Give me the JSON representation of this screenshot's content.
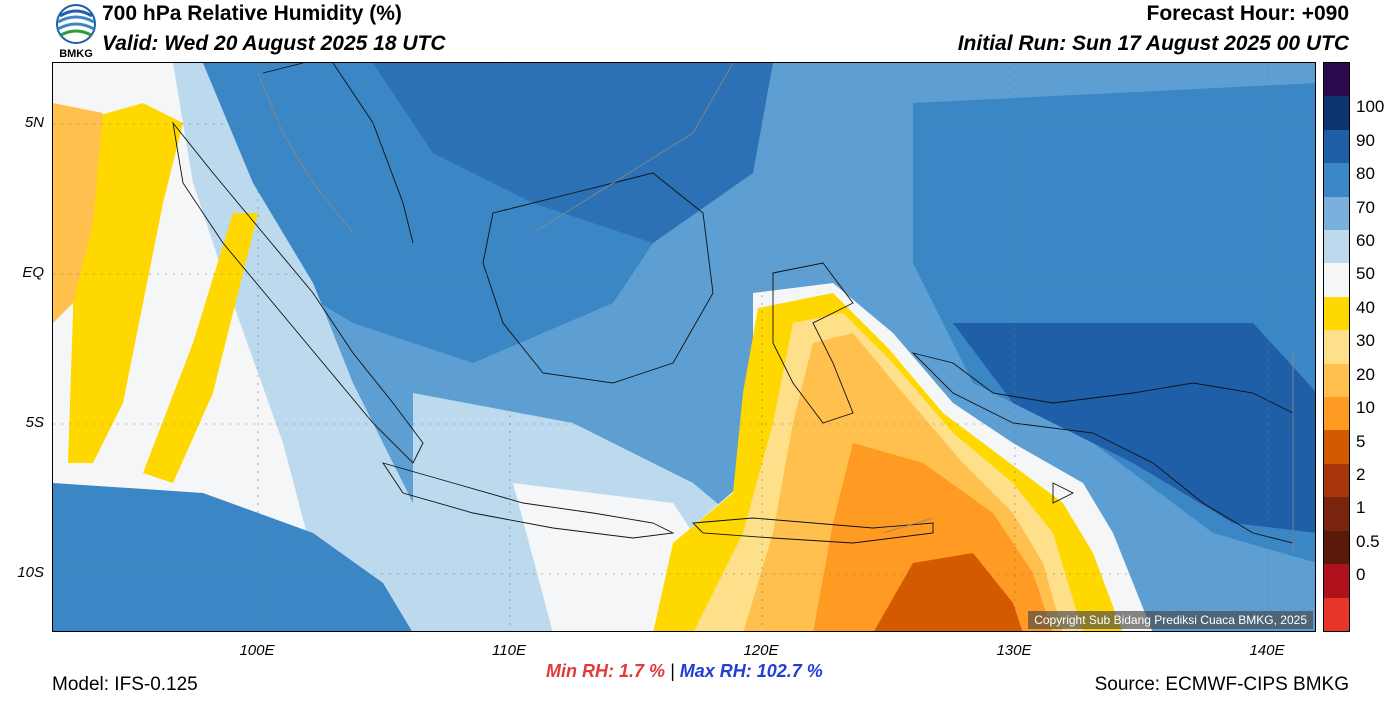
{
  "header": {
    "title": "700 hPa Relative Humidity (%)",
    "valid": "Valid: Wed 20 August 2025 18 UTC",
    "forecast_hour": "Forecast Hour: +090",
    "initial_run": "Initial Run: Sun 17 August 2025 00 UTC"
  },
  "logo": {
    "text": "BMKG"
  },
  "map": {
    "lat_labels": [
      "5N",
      "EQ",
      "5S",
      "10S"
    ],
    "lon_labels": [
      "100E",
      "110E",
      "120E",
      "130E",
      "140E"
    ],
    "copyright": "Copyright Sub Bidang Prediksi Cuaca BMKG, 2025"
  },
  "colorbar": {
    "labels": [
      "100",
      "90",
      "80",
      "70",
      "60",
      "50",
      "40",
      "30",
      "20",
      "10",
      "5",
      "2",
      "1",
      "0.5",
      "0"
    ],
    "colors": [
      "#2b0a4f",
      "#0d3470",
      "#1f5fa8",
      "#3b86c4",
      "#7ab1dc",
      "#bcd9ee",
      "#f4f6f7",
      "#ffd800",
      "#ffe08a",
      "#ffc04e",
      "#ff9a22",
      "#d45a00",
      "#a8360a",
      "#7a2410",
      "#5a1a0a",
      "#b0121c",
      "#e8352a"
    ]
  },
  "stats": {
    "min_label": "Min RH:   1.7 %",
    "separator": "|",
    "max_label": "Max RH: 102.7 %"
  },
  "footer": {
    "model": "Model: IFS-0.125",
    "source": "Source: ECMWF-CIPS BMKG"
  }
}
